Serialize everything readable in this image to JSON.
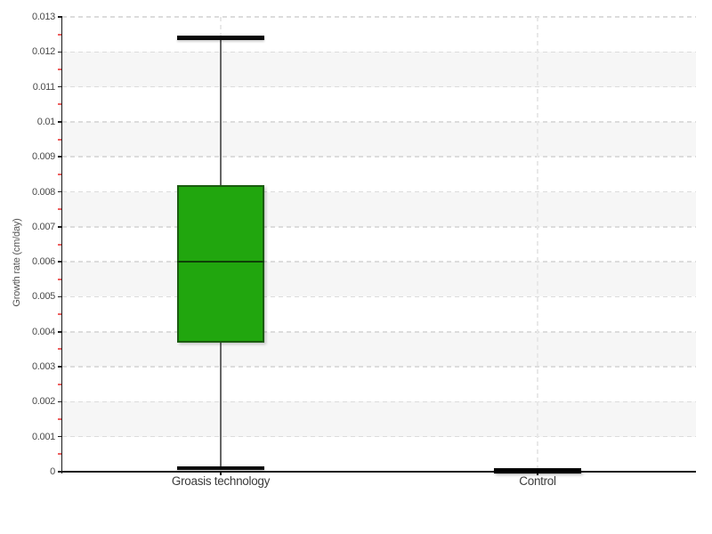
{
  "chart_data": {
    "type": "boxplot",
    "title": "",
    "xlabel": "",
    "ylabel": "Growth rate (cm/day)",
    "ylim": [
      0,
      0.013
    ],
    "ytick_step": 0.001,
    "ytick_labels": [
      "0",
      "0.001",
      "0.002",
      "0.003",
      "0.004",
      "0.005",
      "0.006",
      "0.007",
      "0.008",
      "0.009",
      "0.01",
      "0.011",
      "0.012",
      "0.013"
    ],
    "minor_tick_interval": 0.0005,
    "categories": [
      "Groasis technology",
      "Control"
    ],
    "series": [
      {
        "name": "Groasis technology",
        "min": 0.0001,
        "q1": 0.0037,
        "median": 0.006,
        "q3": 0.0082,
        "max": 0.0124,
        "box_fill": "#21a60e",
        "box_border": "#1b5c10",
        "median_color": "#0e4007"
      },
      {
        "name": "Control",
        "min": 5e-05,
        "q1": 5e-05,
        "median": 5e-05,
        "q3": 5e-05,
        "max": 5e-05,
        "box_fill": "#000000",
        "box_border": "#000000",
        "median_color": "#000000"
      }
    ],
    "legend": "none",
    "grid": {
      "horizontal": "dashed",
      "vertical_category_lines": "dashed",
      "alternating_bands": true
    },
    "colors": {
      "band": "#f6f6f6",
      "h_grid": "#dcdcdc",
      "v_grid": "#e8e8e8",
      "axis": "#1a1a1a",
      "tick_label": "#4a4a4a",
      "category_label": "#3c3c3c",
      "minor_tick": "#f15f5f",
      "whisker": "#666666",
      "cap": "#0a0a0a",
      "background": "#ffffff"
    }
  }
}
